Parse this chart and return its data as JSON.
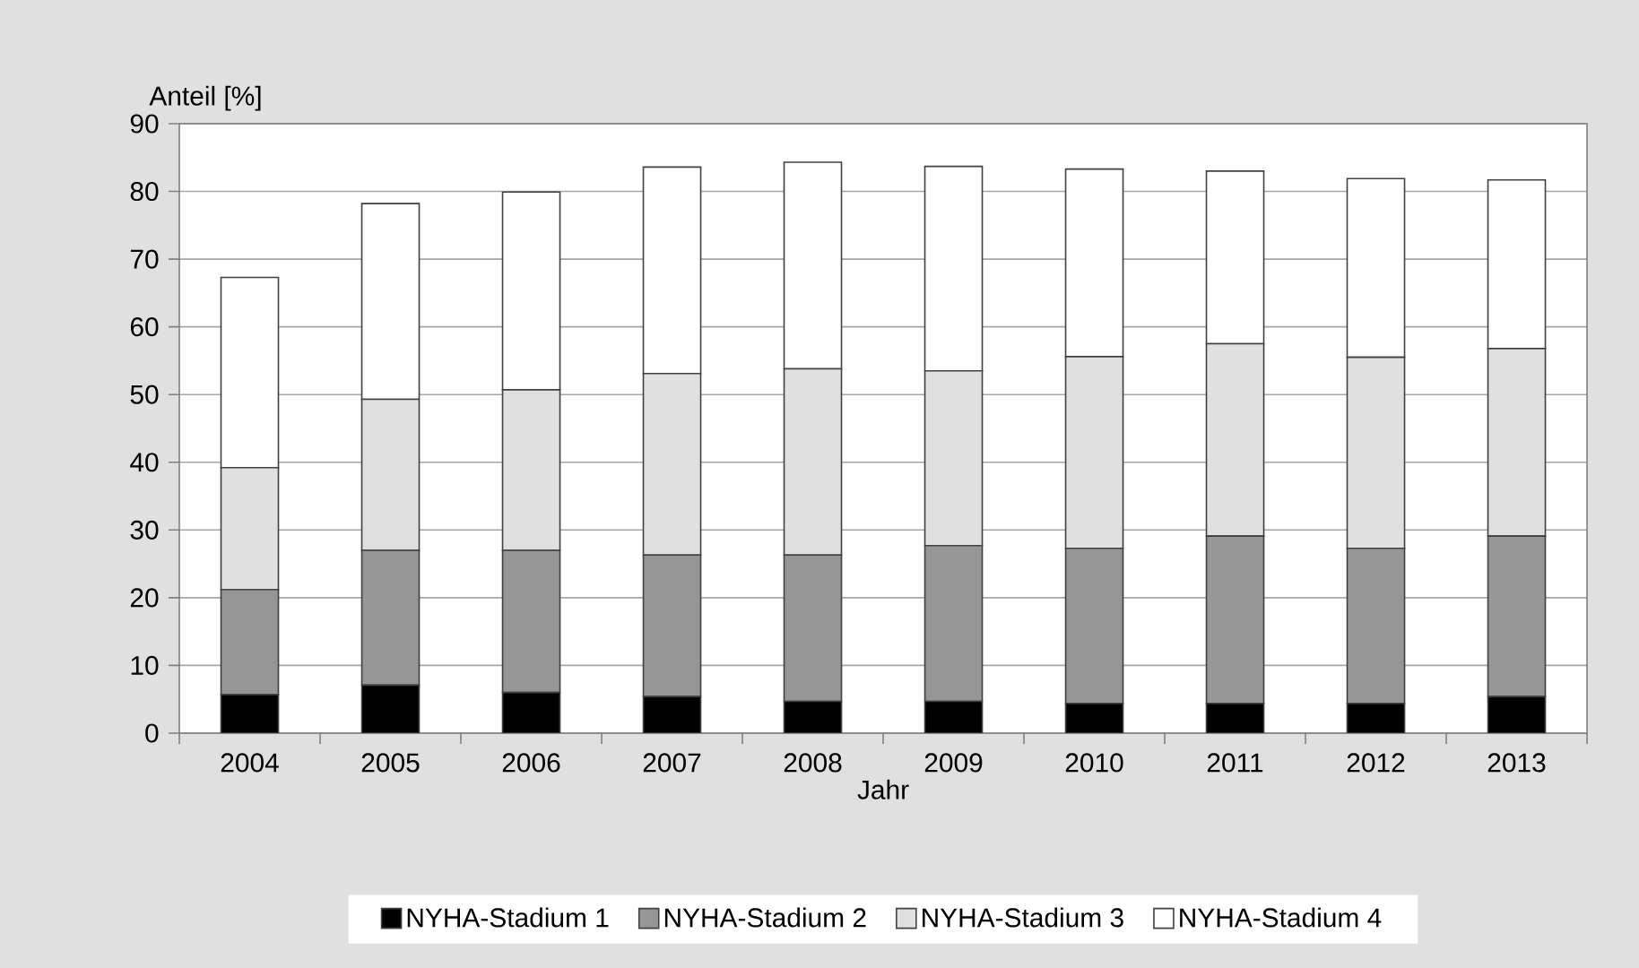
{
  "chart_data": {
    "type": "bar",
    "stacked": true,
    "ylabel": "Anteil [%]",
    "xlabel": "Jahr",
    "categories": [
      "2004",
      "2005",
      "2006",
      "2007",
      "2008",
      "2009",
      "2010",
      "2011",
      "2012",
      "2013"
    ],
    "series": [
      {
        "name": "NYHA-Stadium 1",
        "color": "#000000",
        "values": [
          5.7,
          7.1,
          6.0,
          5.4,
          4.7,
          4.7,
          4.4,
          4.4,
          4.4,
          5.4
        ]
      },
      {
        "name": "NYHA-Stadium 2",
        "color": "#969696",
        "values": [
          15.5,
          19.9,
          21.0,
          20.9,
          21.6,
          23.0,
          22.9,
          24.7,
          22.9,
          23.7
        ]
      },
      {
        "name": "NYHA-Stadium 3",
        "color": "#e0e0e0",
        "values": [
          18.0,
          22.3,
          23.7,
          26.8,
          27.5,
          25.8,
          28.3,
          28.4,
          28.2,
          27.7
        ]
      },
      {
        "name": "NYHA-Stadium 4",
        "color": "#ffffff",
        "values": [
          28.1,
          28.9,
          29.2,
          30.5,
          30.5,
          30.2,
          27.7,
          25.5,
          26.4,
          24.9
        ]
      }
    ],
    "ylim": [
      0,
      90
    ],
    "yticks": [
      0,
      10,
      20,
      30,
      40,
      50,
      60,
      70,
      80,
      90
    ],
    "grid": "y",
    "legend": "bottom"
  }
}
